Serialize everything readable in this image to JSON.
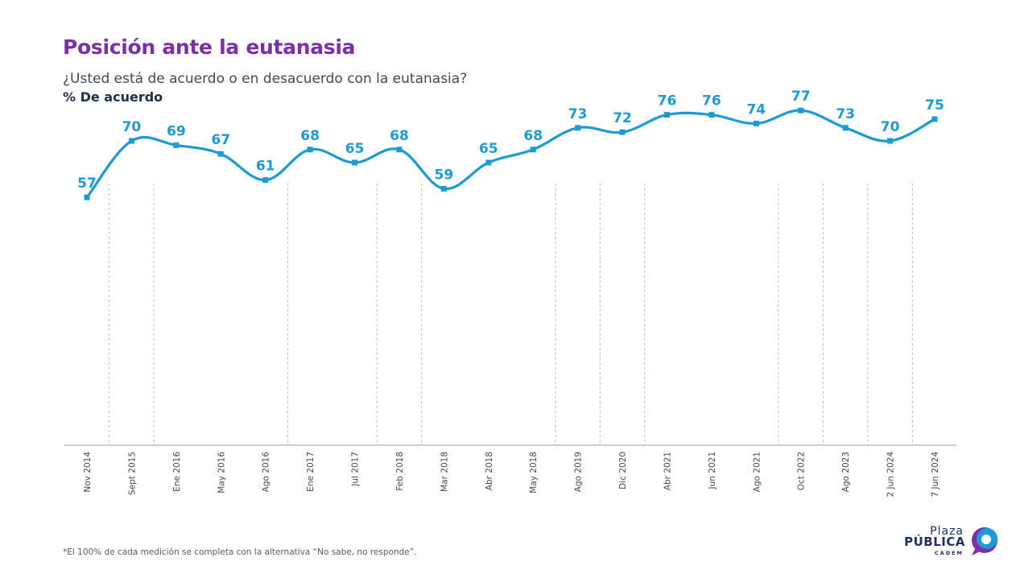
{
  "header": {
    "title": "Posición ante la eutanasia",
    "subtitle": "¿Usted está de acuerdo o en desacuerdo con la eutanasia?",
    "measure": "% De acuerdo"
  },
  "footnote": "*El 100% de cada medición se completa con la alternativa “No sabe, no responde”.",
  "logo": {
    "plaza": "Plaza",
    "publica": "PÚBLICA",
    "cadem": "CADEM"
  },
  "colors": {
    "title": "#7b2fa8",
    "line": "#1b9ad6",
    "text": "#3d4a5c"
  },
  "chart_data": {
    "type": "line",
    "title": "Posición ante la eutanasia",
    "ylabel": "% De acuerdo",
    "ylim": [
      0,
      100
    ],
    "grid": "dashed vertical separators",
    "categories": [
      "Nov 2014",
      "Sept 2015",
      "Ene 2016",
      "May 2016",
      "Ago 2016",
      "Ene 2017",
      "Jul 2017",
      "Feb 2018",
      "Mar 2018",
      "Abr 2018",
      "May 2018",
      "Ago 2019",
      "Dic 2020",
      "Abr 2021",
      "Jun 2021",
      "Ago 2021",
      "Oct 2022",
      "Ago 2023",
      "2 Jun 2024",
      "7 Jun 2024"
    ],
    "series": [
      {
        "values": [
          57,
          70,
          69,
          67,
          61,
          68,
          65,
          68,
          59,
          65,
          68,
          73,
          72,
          76,
          76,
          74,
          77,
          73,
          70,
          75
        ]
      }
    ],
    "separators_after": [
      "Nov 2014",
      "Sept 2015",
      "Ago 2016",
      "Jul 2017",
      "Feb 2018",
      "May 2018",
      "Ago 2019",
      "Dic 2020",
      "Ago 2021",
      "Oct 2022",
      "Ago 2023",
      "2 Jun 2024"
    ]
  }
}
